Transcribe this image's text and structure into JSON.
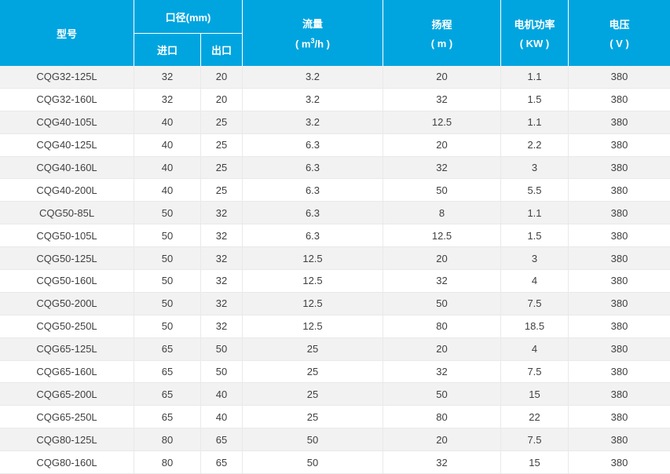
{
  "table": {
    "header": {
      "model": "型号",
      "diameter_group": "口径(mm)",
      "diameter_in": "进口",
      "diameter_out": "出口",
      "flow_label": "流量",
      "flow_unit_pre": "( m",
      "flow_unit_sup": "3",
      "flow_unit_post": "/h )",
      "head_label": "扬程",
      "head_unit": "( m )",
      "power_label": "电机功率",
      "power_unit": "( KW )",
      "voltage_label": "电压",
      "voltage_unit": "( V )"
    }
  },
  "colors": {
    "header_bg": "#00a5df",
    "header_text": "#ffffff",
    "row_alt_bg": "#f2f2f2",
    "row_bg": "#ffffff",
    "body_text": "#404040",
    "grid_line": "#e9e9e9"
  },
  "chart_data": {
    "type": "table",
    "title": "",
    "columns": [
      "型号",
      "口径(mm) 进口",
      "口径(mm) 出口",
      "流量 ( m³/h )",
      "扬程 ( m )",
      "电机功率 ( KW )",
      "电压 ( V )"
    ],
    "rows": [
      [
        "CQG32-125L",
        "32",
        "20",
        "3.2",
        "20",
        "1.1",
        "380"
      ],
      [
        "CQG32-160L",
        "32",
        "20",
        "3.2",
        "32",
        "1.5",
        "380"
      ],
      [
        "CQG40-105L",
        "40",
        "25",
        "3.2",
        "12.5",
        "1.1",
        "380"
      ],
      [
        "CQG40-125L",
        "40",
        "25",
        "6.3",
        "20",
        "2.2",
        "380"
      ],
      [
        "CQG40-160L",
        "40",
        "25",
        "6.3",
        "32",
        "3",
        "380"
      ],
      [
        "CQG40-200L",
        "40",
        "25",
        "6.3",
        "50",
        "5.5",
        "380"
      ],
      [
        "CQG50-85L",
        "50",
        "32",
        "6.3",
        "8",
        "1.1",
        "380"
      ],
      [
        "CQG50-105L",
        "50",
        "32",
        "6.3",
        "12.5",
        "1.5",
        "380"
      ],
      [
        "CQG50-125L",
        "50",
        "32",
        "12.5",
        "20",
        "3",
        "380"
      ],
      [
        "CQG50-160L",
        "50",
        "32",
        "12.5",
        "32",
        "4",
        "380"
      ],
      [
        "CQG50-200L",
        "50",
        "32",
        "12.5",
        "50",
        "7.5",
        "380"
      ],
      [
        "CQG50-250L",
        "50",
        "32",
        "12.5",
        "80",
        "18.5",
        "380"
      ],
      [
        "CQG65-125L",
        "65",
        "50",
        "25",
        "20",
        "4",
        "380"
      ],
      [
        "CQG65-160L",
        "65",
        "50",
        "25",
        "32",
        "7.5",
        "380"
      ],
      [
        "CQG65-200L",
        "65",
        "40",
        "25",
        "50",
        "15",
        "380"
      ],
      [
        "CQG65-250L",
        "65",
        "40",
        "25",
        "80",
        "22",
        "380"
      ],
      [
        "CQG80-125L",
        "80",
        "65",
        "50",
        "20",
        "7.5",
        "380"
      ],
      [
        "CQG80-160L",
        "80",
        "65",
        "50",
        "32",
        "15",
        "380"
      ]
    ]
  }
}
